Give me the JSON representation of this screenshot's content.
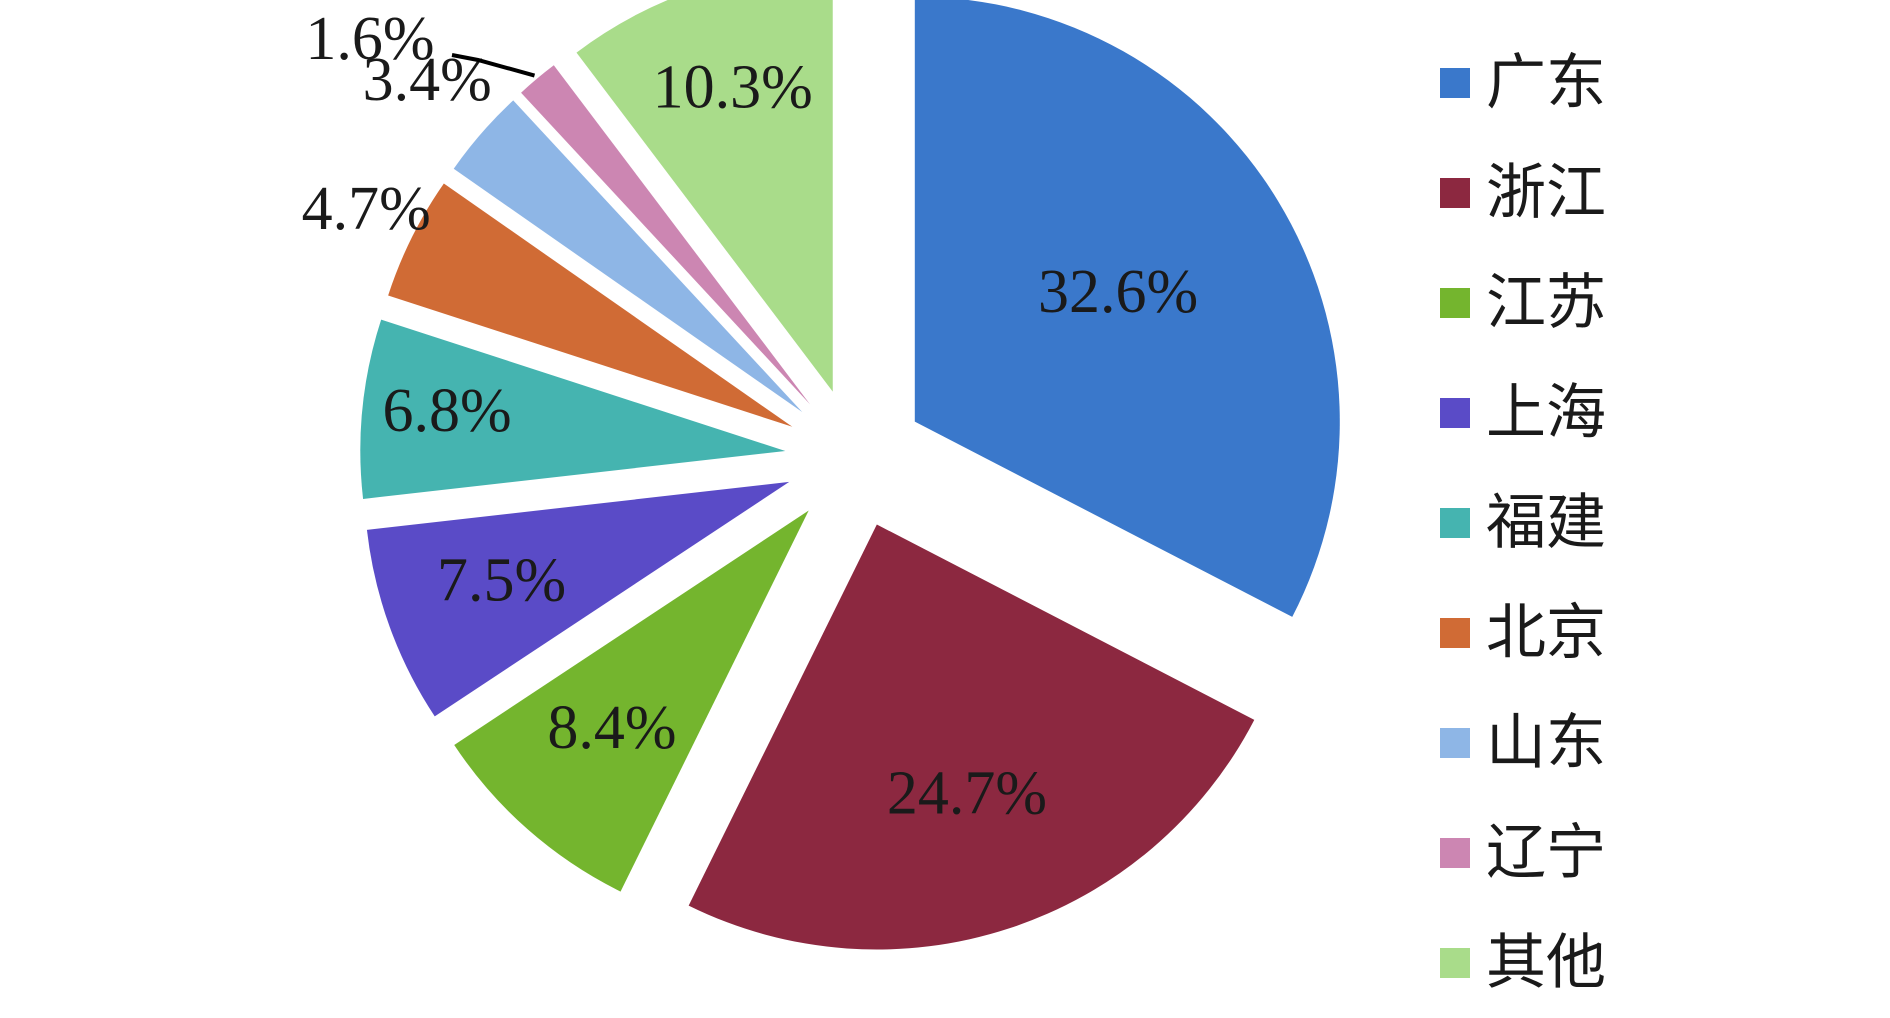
{
  "chart_data": {
    "type": "pie",
    "exploded": true,
    "legend_position": "right",
    "categories": [
      "广东",
      "浙江",
      "江苏",
      "上海",
      "福建",
      "北京",
      "山东",
      "辽宁",
      "其他"
    ],
    "values": [
      32.6,
      24.7,
      8.4,
      7.5,
      6.8,
      4.7,
      3.4,
      1.6,
      10.3
    ],
    "labels": [
      "32.6%",
      "24.7%",
      "8.4%",
      "7.5%",
      "6.8%",
      "4.7%",
      "3.4%",
      "1.6%",
      "10.3%"
    ],
    "colors": [
      "#3a78cb",
      "#8c2840",
      "#74b52e",
      "#5a4bc7",
      "#45b4b0",
      "#d06b35",
      "#8eb6e6",
      "#cc86b2",
      "#a9dc8a"
    ]
  }
}
